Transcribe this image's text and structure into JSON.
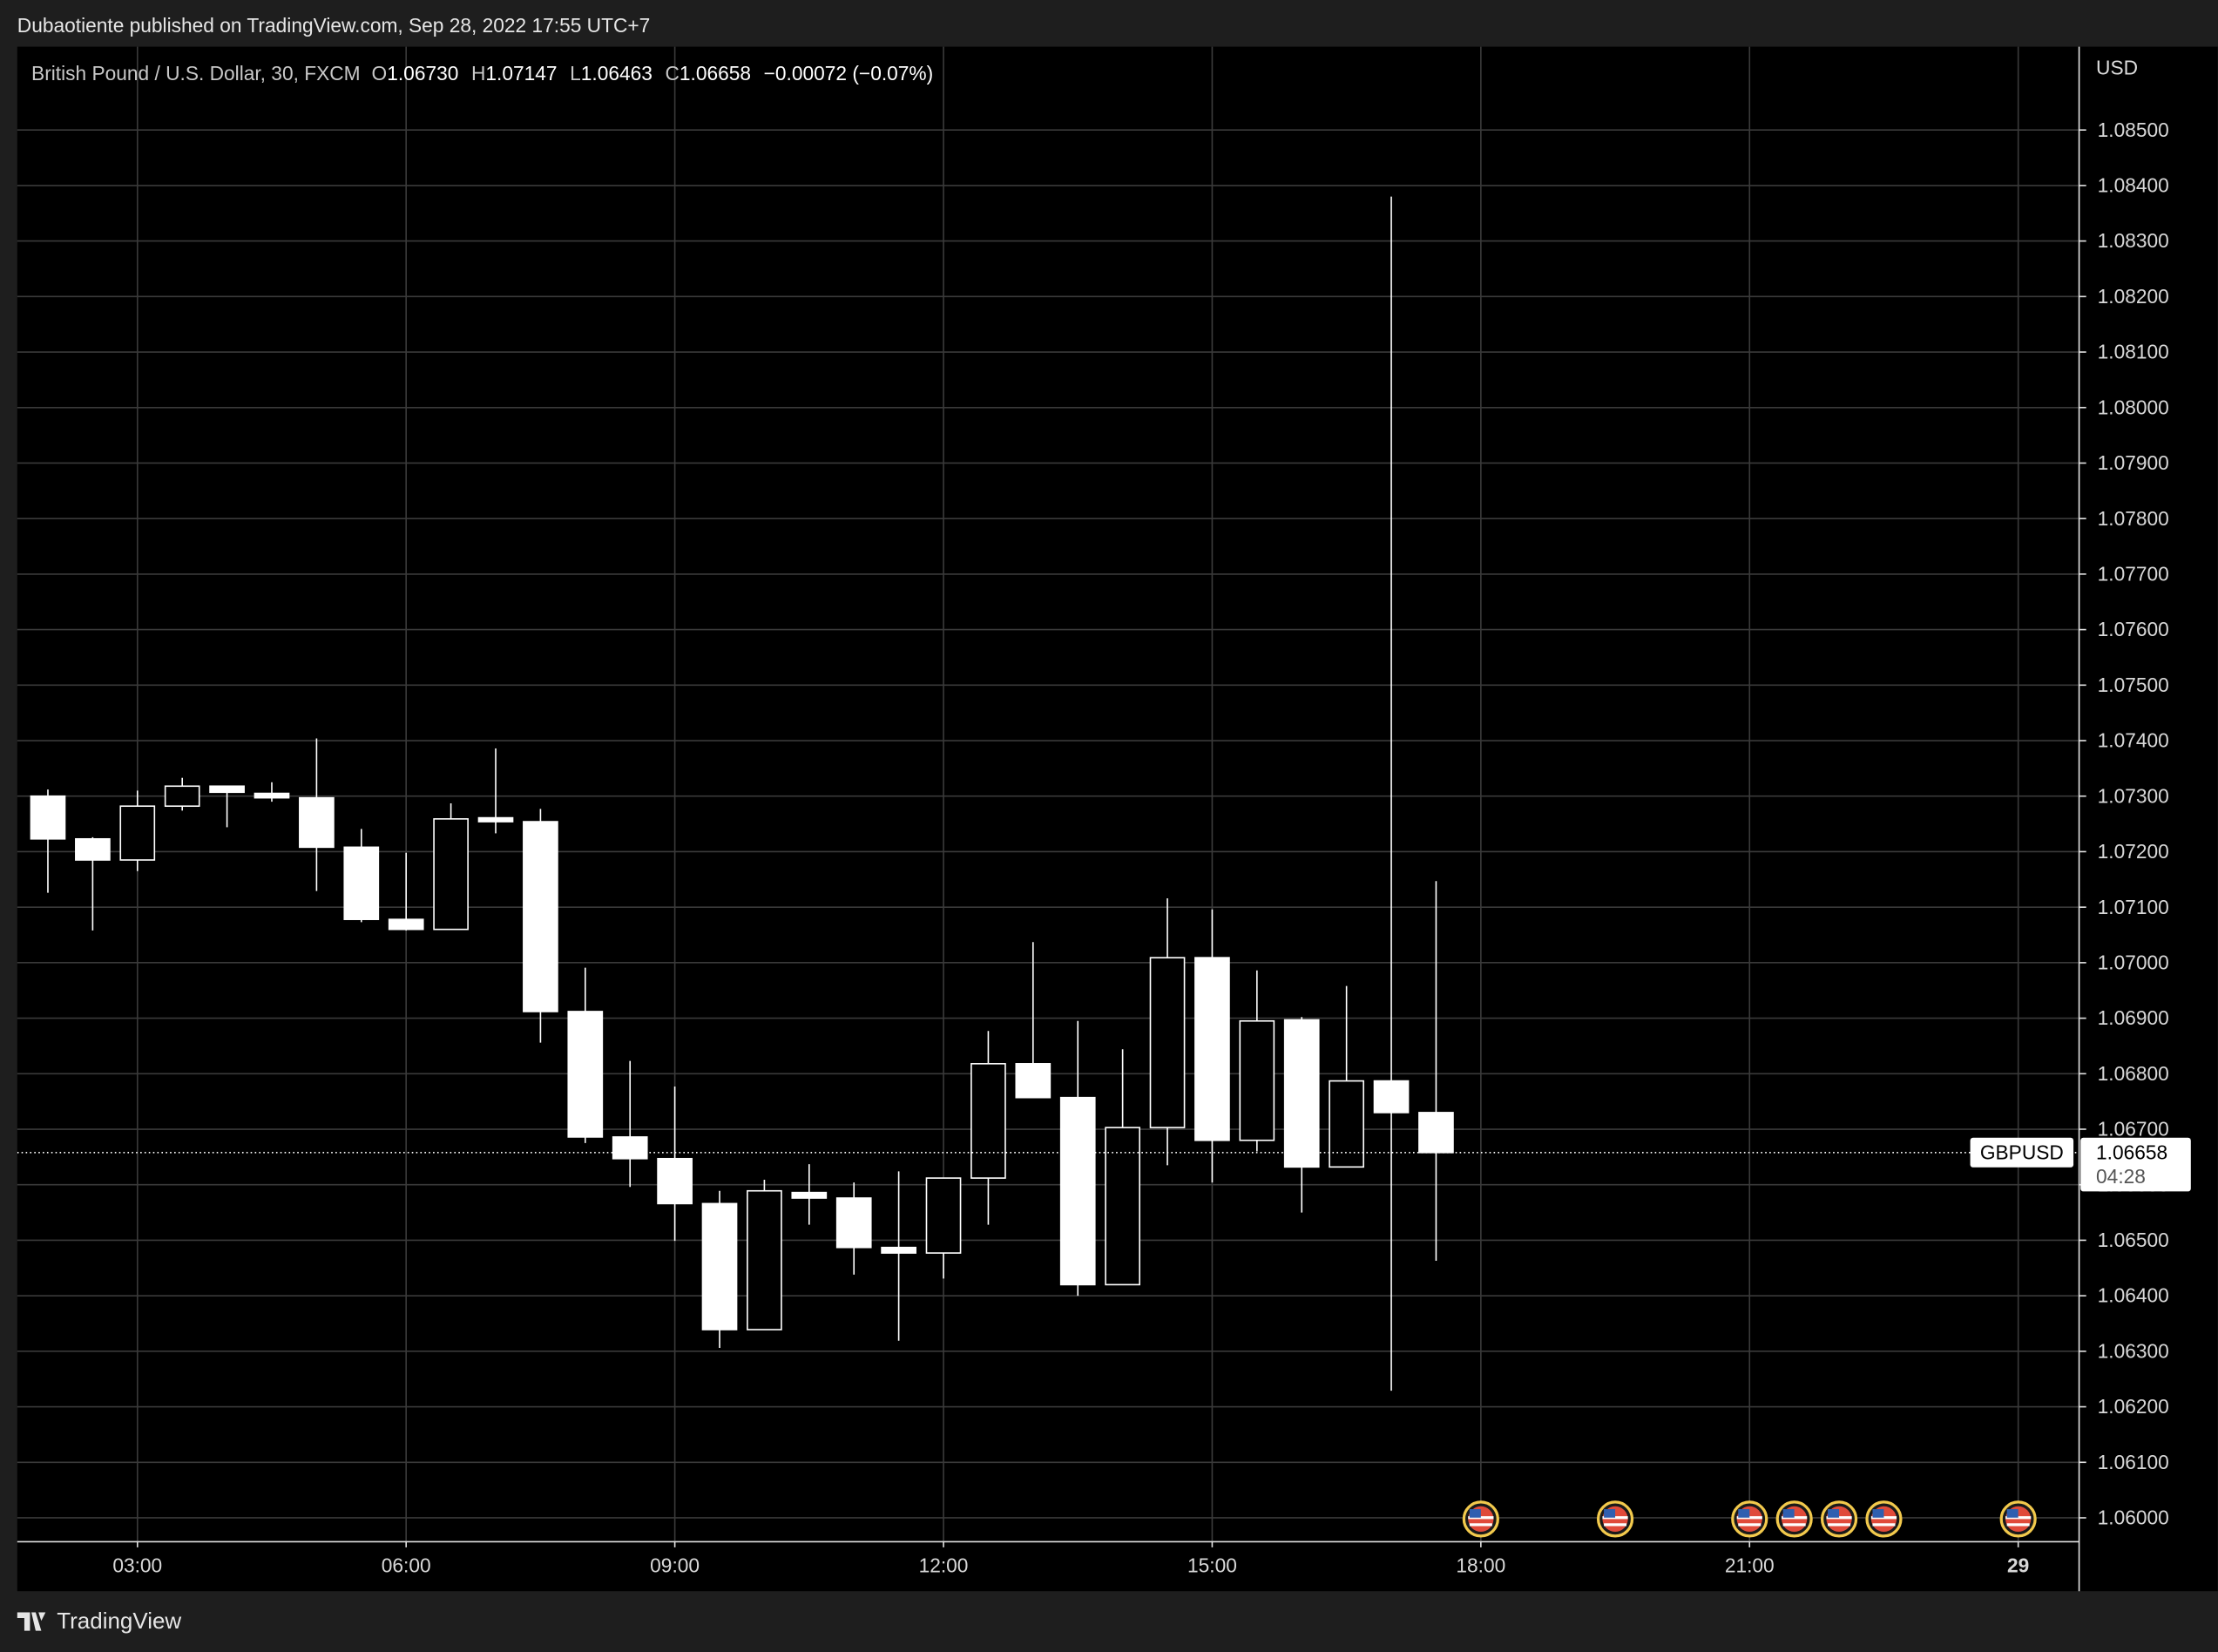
{
  "header": "Dubaotiente published on TradingView.com, Sep 28, 2022 17:55 UTC+7",
  "footer": "TradingView",
  "chart_data": {
    "type": "candlestick",
    "legend": {
      "symbol": "British Pound / U.S. Dollar, 30, FXCM",
      "ohlc": [
        {
          "key": "O",
          "text": "1.06730"
        },
        {
          "key": "H",
          "text": "1.07147"
        },
        {
          "key": "L",
          "text": "1.06463"
        },
        {
          "key": "C",
          "text": "1.06658"
        }
      ],
      "change": "−0.00072 (−0.07%)"
    },
    "currency": "USD",
    "color": "#ffffff",
    "grid": true,
    "x": [
      2,
      2.5,
      3,
      3.5,
      4,
      4.5,
      5,
      5.5,
      6,
      6.5,
      7,
      7.5,
      8,
      8.5,
      9,
      9.5,
      10,
      10.5,
      11,
      11.5,
      12,
      12.5,
      13,
      13.5,
      14,
      14.5,
      15,
      15.5,
      16,
      16.5,
      17,
      17.5
    ],
    "open": [
      1.073,
      1.07223,
      1.07185,
      1.07282,
      1.07318,
      1.07305,
      1.07297,
      1.07208,
      1.07078,
      1.0706,
      1.07261,
      1.07254,
      1.06912,
      1.06686,
      1.06647,
      1.06566,
      1.06339,
      1.06586,
      1.06576,
      1.06487,
      1.06477,
      1.06612,
      1.06818,
      1.06757,
      1.0642,
      1.06703,
      1.07009,
      1.0668,
      1.06897,
      1.06632,
      1.06787,
      1.0673
    ],
    "high": [
      1.07312,
      1.07226,
      1.0731,
      1.07333,
      1.07318,
      1.07325,
      1.07404,
      1.07241,
      1.07198,
      1.07287,
      1.07386,
      1.07277,
      1.06991,
      1.06823,
      1.06777,
      1.06589,
      1.06609,
      1.06637,
      1.06604,
      1.06624,
      1.06612,
      1.06877,
      1.07037,
      1.06895,
      1.06844,
      1.07116,
      1.07096,
      1.06986,
      1.06902,
      1.06958,
      1.0838,
      1.07147
    ],
    "low": [
      1.07126,
      1.07058,
      1.07165,
      1.07274,
      1.07244,
      1.0729,
      1.07129,
      1.07073,
      1.07058,
      1.0706,
      1.07233,
      1.06856,
      1.06675,
      1.06596,
      1.06499,
      1.06306,
      1.06339,
      1.06528,
      1.06438,
      1.06319,
      1.06431,
      1.06528,
      1.06757,
      1.064,
      1.0642,
      1.06635,
      1.06604,
      1.0666,
      1.0655,
      1.06632,
      1.06229,
      1.06463
    ],
    "close": [
      1.07223,
      1.07185,
      1.07282,
      1.07318,
      1.07307,
      1.07297,
      1.07208,
      1.07078,
      1.0706,
      1.07259,
      1.07254,
      1.06912,
      1.06686,
      1.06647,
      1.06566,
      1.06339,
      1.06589,
      1.06576,
      1.06487,
      1.06477,
      1.06612,
      1.06818,
      1.06757,
      1.0642,
      1.06703,
      1.07009,
      1.0668,
      1.06895,
      1.06632,
      1.06787,
      1.0673,
      1.06658
    ],
    "xlim": [
      1.658,
      24.68
    ],
    "xticks": [
      {
        "value": 3,
        "label": "03:00"
      },
      {
        "value": 6,
        "label": "06:00"
      },
      {
        "value": 9,
        "label": "09:00"
      },
      {
        "value": 12,
        "label": "12:00"
      },
      {
        "value": 15,
        "label": "15:00"
      },
      {
        "value": 18,
        "label": "18:00"
      },
      {
        "value": 21,
        "label": "21:00"
      },
      {
        "value": 24,
        "label": "29"
      }
    ],
    "ylim": [
      1.05957,
      1.08645
    ],
    "yticks": [
      {
        "value": 1.06,
        "label": "1.06000"
      },
      {
        "value": 1.061,
        "label": "1.06100"
      },
      {
        "value": 1.062,
        "label": "1.06200"
      },
      {
        "value": 1.063,
        "label": "1.06300"
      },
      {
        "value": 1.064,
        "label": "1.06400"
      },
      {
        "value": 1.065,
        "label": "1.06500"
      },
      {
        "value": 1.066,
        "label": "1.06600"
      },
      {
        "value": 1.067,
        "label": "1.06700"
      },
      {
        "value": 1.068,
        "label": "1.06800"
      },
      {
        "value": 1.069,
        "label": "1.06900"
      },
      {
        "value": 1.07,
        "label": "1.07000"
      },
      {
        "value": 1.071,
        "label": "1.07100"
      },
      {
        "value": 1.072,
        "label": "1.07200"
      },
      {
        "value": 1.073,
        "label": "1.07300"
      },
      {
        "value": 1.074,
        "label": "1.07400"
      },
      {
        "value": 1.075,
        "label": "1.07500"
      },
      {
        "value": 1.076,
        "label": "1.07600"
      },
      {
        "value": 1.077,
        "label": "1.07700"
      },
      {
        "value": 1.078,
        "label": "1.07800"
      },
      {
        "value": 1.079,
        "label": "1.07900"
      },
      {
        "value": 1.08,
        "label": "1.08000"
      },
      {
        "value": 1.081,
        "label": "1.08100"
      },
      {
        "value": 1.082,
        "label": "1.08200"
      },
      {
        "value": 1.083,
        "label": "1.08300"
      },
      {
        "value": 1.084,
        "label": "1.08400"
      },
      {
        "value": 1.085,
        "label": "1.08500"
      }
    ],
    "last_price": {
      "symbol": "GBPUSD",
      "value": 1.06658,
      "countdown": "04:28"
    },
    "events": [
      18,
      19.5,
      21,
      21.5,
      22,
      22.5,
      24
    ]
  }
}
